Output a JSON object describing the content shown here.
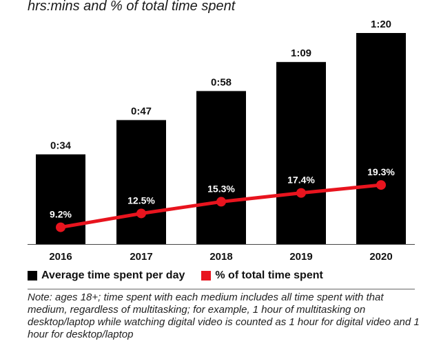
{
  "subtitle": "hrs:mins and % of total time spent",
  "chart_data": {
    "type": "bar",
    "categories": [
      "2016",
      "2017",
      "2018",
      "2019",
      "2020"
    ],
    "series": [
      {
        "name": "Average time spent per day",
        "kind": "bar",
        "color": "#000000",
        "values": [
          34,
          47,
          58,
          69,
          80
        ],
        "labels": [
          "0:34",
          "0:47",
          "0:58",
          "1:09",
          "1:20"
        ]
      },
      {
        "name": "% of total time spent",
        "kind": "line",
        "color": "#e8141e",
        "values": [
          9.2,
          12.5,
          15.3,
          17.4,
          19.3
        ],
        "labels": [
          "9.2%",
          "12.5%",
          "15.3%",
          "17.4%",
          "19.3%"
        ]
      }
    ],
    "grid": false,
    "legend_position": "bottom"
  },
  "legend": {
    "items": [
      {
        "label": "Average time spent per day",
        "color": "#000000"
      },
      {
        "label": "% of total time spent",
        "color": "#e8141e"
      }
    ]
  },
  "note": "Note: ages 18+; time spent with each medium includes all time spent with that medium, regardless of multitasking; for example, 1 hour of multitasking on desktop/laptop while watching digital video is counted as 1 hour for digital video and 1 hour for desktop/laptop"
}
